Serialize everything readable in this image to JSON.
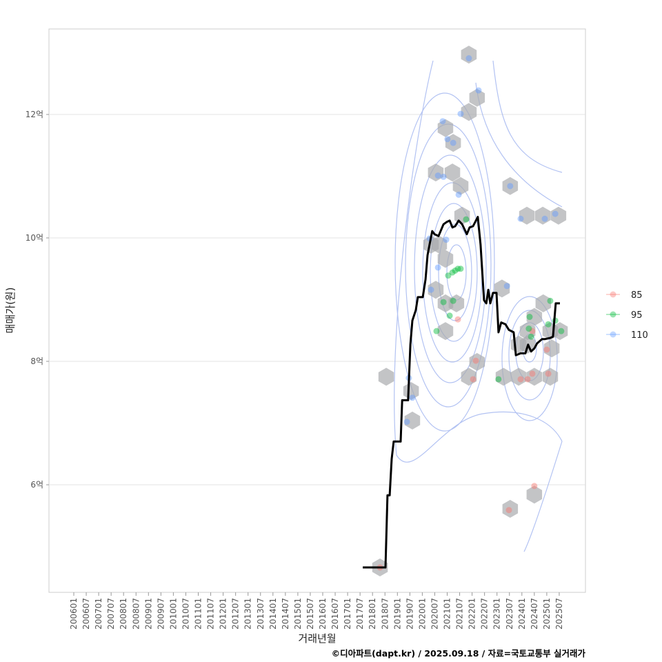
{
  "chart_data": {
    "type": "line",
    "title": "",
    "xlabel": "거래년월",
    "ylabel": "매매가(원)",
    "caption": "©디아파트(dapt.kr) / 2025.09.18 / 자료=국토교통부 실거래가",
    "xlim": [
      2005,
      2027.5
    ],
    "ylim": [
      4.3,
      13.5
    ],
    "grid": true,
    "y_ticks": [
      {
        "value": 6,
        "label": "6억"
      },
      {
        "value": 8,
        "label": "8억"
      },
      {
        "value": 10,
        "label": "10억"
      },
      {
        "value": 12,
        "label": "12억"
      }
    ],
    "x_ticks": [
      "200601",
      "200607",
      "200701",
      "200707",
      "200801",
      "200807",
      "200901",
      "200907",
      "201001",
      "201007",
      "201101",
      "201107",
      "201201",
      "201207",
      "201301",
      "201307",
      "201401",
      "201407",
      "201501",
      "201507",
      "201601",
      "201607",
      "201701",
      "201707",
      "201801",
      "201807",
      "201901",
      "201907",
      "202001",
      "202007",
      "202101",
      "202107",
      "202201",
      "202207",
      "202301",
      "202307",
      "202401",
      "202407",
      "202501",
      "202507"
    ],
    "legend": {
      "placement": "right",
      "entries": [
        {
          "label": "85",
          "color": "#F8766D"
        },
        {
          "label": "95",
          "color": "#00BA38"
        },
        {
          "label": "110",
          "color": "#619CFF"
        }
      ]
    },
    "median_line": {
      "color": "#000000",
      "points": [
        [
          2017.61,
          4.66
        ],
        [
          2018.52,
          4.66
        ],
        [
          2018.6,
          5.83
        ],
        [
          2018.69,
          5.83
        ],
        [
          2018.77,
          6.42
        ],
        [
          2018.85,
          6.7
        ],
        [
          2019.13,
          6.7
        ],
        [
          2019.19,
          7.37
        ],
        [
          2019.43,
          7.37
        ],
        [
          2019.52,
          8.27
        ],
        [
          2019.6,
          8.66
        ],
        [
          2019.74,
          8.83
        ],
        [
          2019.82,
          9.04
        ],
        [
          2020.02,
          9.04
        ],
        [
          2020.13,
          9.33
        ],
        [
          2020.21,
          9.72
        ],
        [
          2020.29,
          9.89
        ],
        [
          2020.4,
          10.11
        ],
        [
          2020.49,
          10.06
        ],
        [
          2020.65,
          10.03
        ],
        [
          2020.85,
          10.22
        ],
        [
          2020.99,
          10.26
        ],
        [
          2021.1,
          10.28
        ],
        [
          2021.21,
          10.17
        ],
        [
          2021.32,
          10.19
        ],
        [
          2021.46,
          10.28
        ],
        [
          2021.6,
          10.22
        ],
        [
          2021.79,
          10.06
        ],
        [
          2021.9,
          10.17
        ],
        [
          2022.04,
          10.19
        ],
        [
          2022.23,
          10.34
        ],
        [
          2022.34,
          9.89
        ],
        [
          2022.48,
          8.99
        ],
        [
          2022.57,
          8.94
        ],
        [
          2022.65,
          9.16
        ],
        [
          2022.73,
          8.94
        ],
        [
          2022.84,
          9.11
        ],
        [
          2022.98,
          9.11
        ],
        [
          2023.06,
          8.47
        ],
        [
          2023.17,
          8.63
        ],
        [
          2023.34,
          8.6
        ],
        [
          2023.48,
          8.51
        ],
        [
          2023.67,
          8.47
        ],
        [
          2023.76,
          8.1
        ],
        [
          2023.95,
          8.13
        ],
        [
          2024.14,
          8.13
        ],
        [
          2024.25,
          8.27
        ],
        [
          2024.37,
          8.16
        ],
        [
          2024.5,
          8.21
        ],
        [
          2024.61,
          8.29
        ],
        [
          2024.81,
          8.36
        ],
        [
          2024.92,
          8.36
        ],
        [
          2025.14,
          8.38
        ],
        [
          2025.25,
          8.4
        ],
        [
          2025.36,
          8.94
        ],
        [
          2025.53,
          8.94
        ]
      ]
    },
    "series": [
      {
        "name": "85",
        "points": [
          [
            2021.43,
            8.68
          ],
          [
            2022.15,
            8.01
          ],
          [
            2022.04,
            7.71
          ],
          [
            2023.48,
            5.59
          ],
          [
            2023.95,
            7.71
          ],
          [
            2024.23,
            7.71
          ],
          [
            2024.42,
            7.8
          ],
          [
            2024.5,
            5.98
          ],
          [
            2025.0,
            8.19
          ],
          [
            2025.06,
            7.8
          ],
          [
            2024.42,
            8.49
          ],
          [
            2018.3,
            4.66
          ]
        ]
      },
      {
        "name": "95",
        "points": [
          [
            2020.57,
            8.49
          ],
          [
            2020.85,
            8.96
          ],
          [
            2021.1,
            8.74
          ],
          [
            2021.24,
            8.98
          ],
          [
            2021.04,
            9.39
          ],
          [
            2021.21,
            9.44
          ],
          [
            2021.32,
            9.47
          ],
          [
            2021.43,
            9.5
          ],
          [
            2021.54,
            9.5
          ],
          [
            2021.76,
            10.3
          ],
          [
            2023.06,
            7.71
          ],
          [
            2024.31,
            8.72
          ],
          [
            2024.28,
            8.53
          ],
          [
            2024.37,
            8.4
          ],
          [
            2025.06,
            8.6
          ],
          [
            2025.14,
            8.98
          ],
          [
            2025.58,
            8.49
          ],
          [
            2025.34,
            8.66
          ]
        ]
      },
      {
        "name": "110",
        "points": [
          [
            2021.87,
            12.91
          ],
          [
            2021.54,
            12.01
          ],
          [
            2022.26,
            12.39
          ],
          [
            2020.82,
            11.89
          ],
          [
            2021.01,
            11.6
          ],
          [
            2021.24,
            11.54
          ],
          [
            2020.63,
            11.01
          ],
          [
            2020.85,
            10.99
          ],
          [
            2021.46,
            10.7
          ],
          [
            2020.63,
            9.52
          ],
          [
            2020.29,
            9.99
          ],
          [
            2020.96,
            9.97
          ],
          [
            2020.35,
            9.16
          ],
          [
            2019.38,
            7.02
          ],
          [
            2019.6,
            7.41
          ],
          [
            2019.46,
            7.73
          ],
          [
            2023.53,
            10.84
          ],
          [
            2023.95,
            10.31
          ],
          [
            2024.92,
            10.31
          ],
          [
            2025.34,
            10.39
          ],
          [
            2023.4,
            9.22
          ]
        ]
      }
    ],
    "hexbins": [
      [
        2018.3,
        4.66
      ],
      [
        2021.87,
        12.97
      ],
      [
        2022.2,
        12.27
      ],
      [
        2021.87,
        12.04
      ],
      [
        2020.93,
        11.78
      ],
      [
        2021.24,
        11.54
      ],
      [
        2020.54,
        11.06
      ],
      [
        2021.21,
        11.06
      ],
      [
        2021.54,
        10.84
      ],
      [
        2021.6,
        10.36
      ],
      [
        2020.35,
        9.89
      ],
      [
        2020.68,
        9.89
      ],
      [
        2020.93,
        9.66
      ],
      [
        2020.54,
        9.16
      ],
      [
        2020.93,
        8.94
      ],
      [
        2021.37,
        8.94
      ],
      [
        2020.93,
        8.49
      ],
      [
        2022.2,
        7.99
      ],
      [
        2021.87,
        7.75
      ],
      [
        2018.55,
        7.75
      ],
      [
        2019.55,
        7.52
      ],
      [
        2019.6,
        7.04
      ],
      [
        2023.53,
        10.84
      ],
      [
        2024.2,
        10.36
      ],
      [
        2024.84,
        10.36
      ],
      [
        2025.47,
        10.36
      ],
      [
        2023.2,
        9.18
      ],
      [
        2024.86,
        8.94
      ],
      [
        2024.5,
        8.72
      ],
      [
        2024.23,
        8.49
      ],
      [
        2025.14,
        8.49
      ],
      [
        2025.53,
        8.49
      ],
      [
        2023.87,
        8.27
      ],
      [
        2024.23,
        8.27
      ],
      [
        2025.2,
        8.21
      ],
      [
        2023.26,
        7.75
      ],
      [
        2023.87,
        7.75
      ],
      [
        2024.5,
        7.75
      ],
      [
        2025.14,
        7.75
      ],
      [
        2023.53,
        5.61
      ],
      [
        2024.5,
        5.84
      ]
    ]
  }
}
